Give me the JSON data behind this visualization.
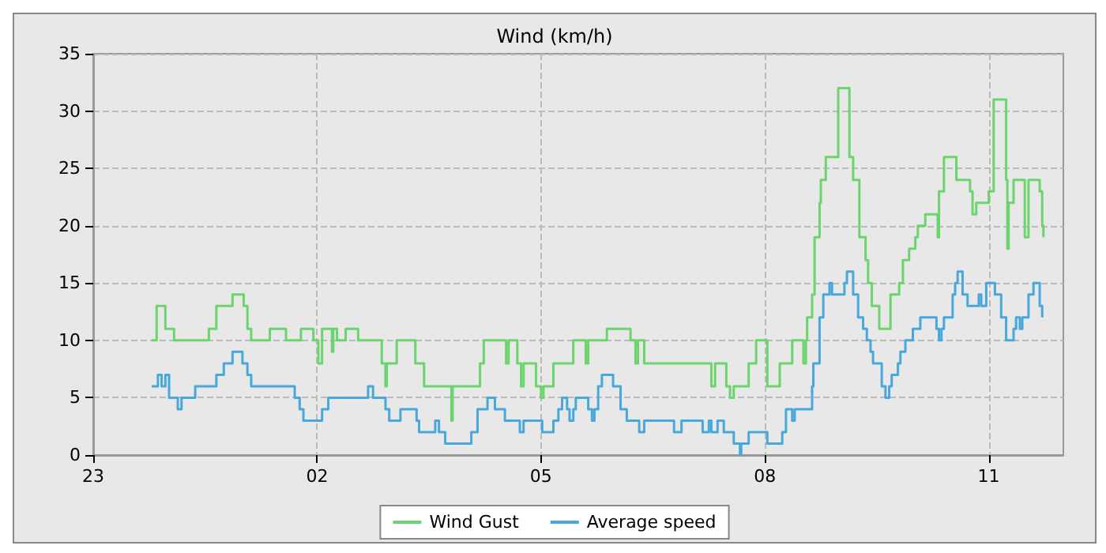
{
  "chart_data": {
    "type": "step",
    "title": "Wind (km/h)",
    "xlim": [
      "--01-01T23:00",
      "--01-02T12:00"
    ],
    "xticks": [
      {
        "value": "--01-01T23:00",
        "label": "23"
      },
      {
        "value": "--01-02T02:00",
        "label": "02"
      },
      {
        "value": "--01-02T05:00",
        "label": "05"
      },
      {
        "value": "--01-02T08:00",
        "label": "08"
      },
      {
        "value": "--01-02T11:00",
        "label": "11"
      }
    ],
    "ylim": [
      0,
      35
    ],
    "yticks": [
      0,
      5,
      10,
      15,
      20,
      25,
      30,
      35
    ],
    "grid": true,
    "legend": "bottom",
    "marker": "none",
    "series": [
      {
        "name": "Wind Gust",
        "color": "#6cd46c",
        "x": [
          "--01-01T23:47",
          "--01-01T23:51",
          "--01-01T23:58",
          "--01-02T00:05",
          "--01-02T00:33",
          "--01-02T00:39",
          "--01-02T00:52",
          "--01-02T01:01",
          "--01-02T01:04",
          "--01-02T01:07",
          "--01-02T01:22",
          "--01-02T01:35",
          "--01-02T01:47",
          "--01-02T01:57",
          "--01-02T02:01",
          "--01-02T02:04",
          "--01-02T02:12",
          "--01-02T02:13",
          "--01-02T02:16",
          "--01-02T02:23",
          "--01-02T02:33",
          "--01-02T02:52",
          "--01-02T02:55",
          "--01-02T02:56",
          "--01-02T03:04",
          "--01-02T03:19",
          "--01-02T03:26",
          "--01-02T03:48",
          "--01-02T03:49",
          "--01-02T04:11",
          "--01-02T04:14",
          "--01-02T04:32",
          "--01-02T04:34",
          "--01-02T04:41",
          "--01-02T04:44",
          "--01-02T04:46",
          "--01-02T04:56",
          "--01-02T05:00",
          "--01-02T05:02",
          "--01-02T05:10",
          "--01-02T05:26",
          "--01-02T05:36",
          "--01-02T05:38",
          "--01-02T05:53",
          "--01-02T06:12",
          "--01-02T06:16",
          "--01-02T06:18",
          "--01-02T06:23",
          "--01-02T07:17",
          "--01-02T07:20",
          "--01-02T07:29",
          "--01-02T07:32",
          "--01-02T07:35",
          "--01-02T07:47",
          "--01-02T07:53",
          "--01-02T08:02",
          "--01-02T08:12",
          "--01-02T08:22",
          "--01-02T08:31",
          "--01-02T08:33",
          "--01-02T08:34",
          "--01-02T08:38",
          "--01-02T08:40",
          "--01-02T08:44",
          "--01-02T08:45",
          "--01-02T08:49",
          "--01-02T08:59",
          "--01-02T09:08",
          "--01-02T09:11",
          "--01-02T09:16",
          "--01-02T09:21",
          "--01-02T09:23",
          "--01-02T09:26",
          "--01-02T09:32",
          "--01-02T09:41",
          "--01-02T09:48",
          "--01-02T09:51",
          "--01-02T09:56",
          "--01-02T10:01",
          "--01-02T10:03",
          "--01-02T10:09",
          "--01-02T10:19",
          "--01-02T10:20",
          "--01-02T10:24",
          "--01-02T10:34",
          "--01-02T10:45",
          "--01-02T10:47",
          "--01-02T10:50",
          "--01-02T11:00",
          "--01-02T11:04",
          "--01-02T11:14",
          "--01-02T11:15",
          "--01-02T11:16",
          "--01-02T11:20",
          "--01-02T11:29",
          "--01-02T11:32",
          "--01-02T11:41",
          "--01-02T11:43",
          "--01-02T11:44"
        ],
        "values": [
          10,
          13,
          11,
          10,
          11,
          13,
          14,
          13,
          11,
          10,
          11,
          10,
          11,
          10,
          8,
          11,
          9,
          11,
          10,
          11,
          10,
          8,
          6,
          8,
          10,
          8,
          6,
          3,
          6,
          8,
          10,
          8,
          10,
          8,
          6,
          8,
          6,
          5,
          6,
          8,
          10,
          8,
          10,
          11,
          10,
          8,
          10,
          8,
          6,
          8,
          6,
          5,
          6,
          8,
          10,
          6,
          8,
          10,
          8,
          10,
          12,
          14,
          19,
          22,
          24,
          26,
          32,
          26,
          24,
          19,
          17,
          15,
          13,
          11,
          14,
          15,
          17,
          18,
          19,
          20,
          21,
          19,
          23,
          26,
          24,
          23,
          21,
          22,
          23,
          31,
          24,
          18,
          22,
          24,
          19,
          24,
          23,
          20,
          19
        ]
      },
      {
        "name": "Average speed",
        "color": "#48a8dc",
        "x": [
          "--01-01T23:47",
          "--01-01T23:52",
          "--01-01T23:55",
          "--01-01T23:58",
          "--01-02T00:01",
          "--01-02T00:08",
          "--01-02T00:11",
          "--01-02T00:22",
          "--01-02T00:39",
          "--01-02T00:45",
          "--01-02T00:52",
          "--01-02T01:00",
          "--01-02T01:04",
          "--01-02T01:07",
          "--01-02T01:42",
          "--01-02T01:46",
          "--01-02T01:49",
          "--01-02T02:04",
          "--01-02T02:09",
          "--01-02T02:41",
          "--01-02T02:45",
          "--01-02T02:55",
          "--01-02T02:58",
          "--01-02T03:07",
          "--01-02T03:20",
          "--01-02T03:22",
          "--01-02T03:35",
          "--01-02T03:38",
          "--01-02T03:43",
          "--01-02T04:04",
          "--01-02T04:09",
          "--01-02T04:17",
          "--01-02T04:23",
          "--01-02T04:31",
          "--01-02T04:43",
          "--01-02T04:46",
          "--01-02T05:01",
          "--01-02T05:10",
          "--01-02T05:14",
          "--01-02T05:17",
          "--01-02T05:21",
          "--01-02T05:23",
          "--01-02T05:26",
          "--01-02T05:28",
          "--01-02T05:38",
          "--01-02T05:41",
          "--01-02T05:43",
          "--01-02T05:46",
          "--01-02T05:49",
          "--01-02T05:58",
          "--01-02T06:04",
          "--01-02T06:09",
          "--01-02T06:19",
          "--01-02T06:23",
          "--01-02T06:47",
          "--01-02T06:53",
          "--01-02T07:10",
          "--01-02T07:15",
          "--01-02T07:17",
          "--01-02T07:22",
          "--01-02T07:27",
          "--01-02T07:35",
          "--01-02T07:40",
          "--01-02T07:41",
          "--01-02T07:47",
          "--01-02T08:02",
          "--01-02T08:14",
          "--01-02T08:17",
          "--01-02T08:22",
          "--01-02T08:24",
          "--01-02T08:38",
          "--01-02T08:39",
          "--01-02T08:44",
          "--01-02T08:47",
          "--01-02T08:52",
          "--01-02T08:54",
          "--01-02T09:04",
          "--01-02T09:06",
          "--01-02T09:11",
          "--01-02T09:15",
          "--01-02T09:19",
          "--01-02T09:22",
          "--01-02T09:25",
          "--01-02T09:27",
          "--01-02T09:34",
          "--01-02T09:37",
          "--01-02T09:40",
          "--01-02T09:42",
          "--01-02T09:47",
          "--01-02T09:49",
          "--01-02T09:53",
          "--01-02T09:59",
          "--01-02T10:05",
          "--01-02T10:18",
          "--01-02T10:20",
          "--01-02T10:22",
          "--01-02T10:24",
          "--01-02T10:31",
          "--01-02T10:33",
          "--01-02T10:35",
          "--01-02T10:39",
          "--01-02T10:43",
          "--01-02T10:52",
          "--01-02T10:54",
          "--01-02T10:58",
          "--01-02T11:05",
          "--01-02T11:10",
          "--01-02T11:14",
          "--01-02T11:20",
          "--01-02T11:22",
          "--01-02T11:25",
          "--01-02T11:27",
          "--01-02T11:32",
          "--01-02T11:36",
          "--01-02T11:41",
          "--01-02T11:43"
        ],
        "values": [
          6,
          7,
          6,
          7,
          5,
          4,
          5,
          6,
          7,
          8,
          9,
          8,
          7,
          6,
          5,
          4,
          3,
          4,
          5,
          6,
          5,
          4,
          3,
          4,
          3,
          2,
          3,
          2,
          1,
          2,
          4,
          5,
          4,
          3,
          2,
          3,
          2,
          3,
          4,
          5,
          4,
          3,
          4,
          5,
          4,
          3,
          4,
          6,
          7,
          6,
          4,
          3,
          2,
          3,
          2,
          3,
          2,
          3,
          2,
          3,
          2,
          1,
          0,
          1,
          2,
          1,
          2,
          4,
          3,
          4,
          6,
          8,
          12,
          14,
          15,
          14,
          15,
          16,
          14,
          12,
          11,
          10,
          9,
          8,
          6,
          5,
          6,
          7,
          8,
          9,
          10,
          11,
          12,
          11,
          10,
          11,
          12,
          14,
          15,
          16,
          14,
          13,
          14,
          13,
          15,
          14,
          12,
          10,
          11,
          12,
          11,
          12,
          14,
          15,
          13,
          12
        ]
      }
    ]
  }
}
